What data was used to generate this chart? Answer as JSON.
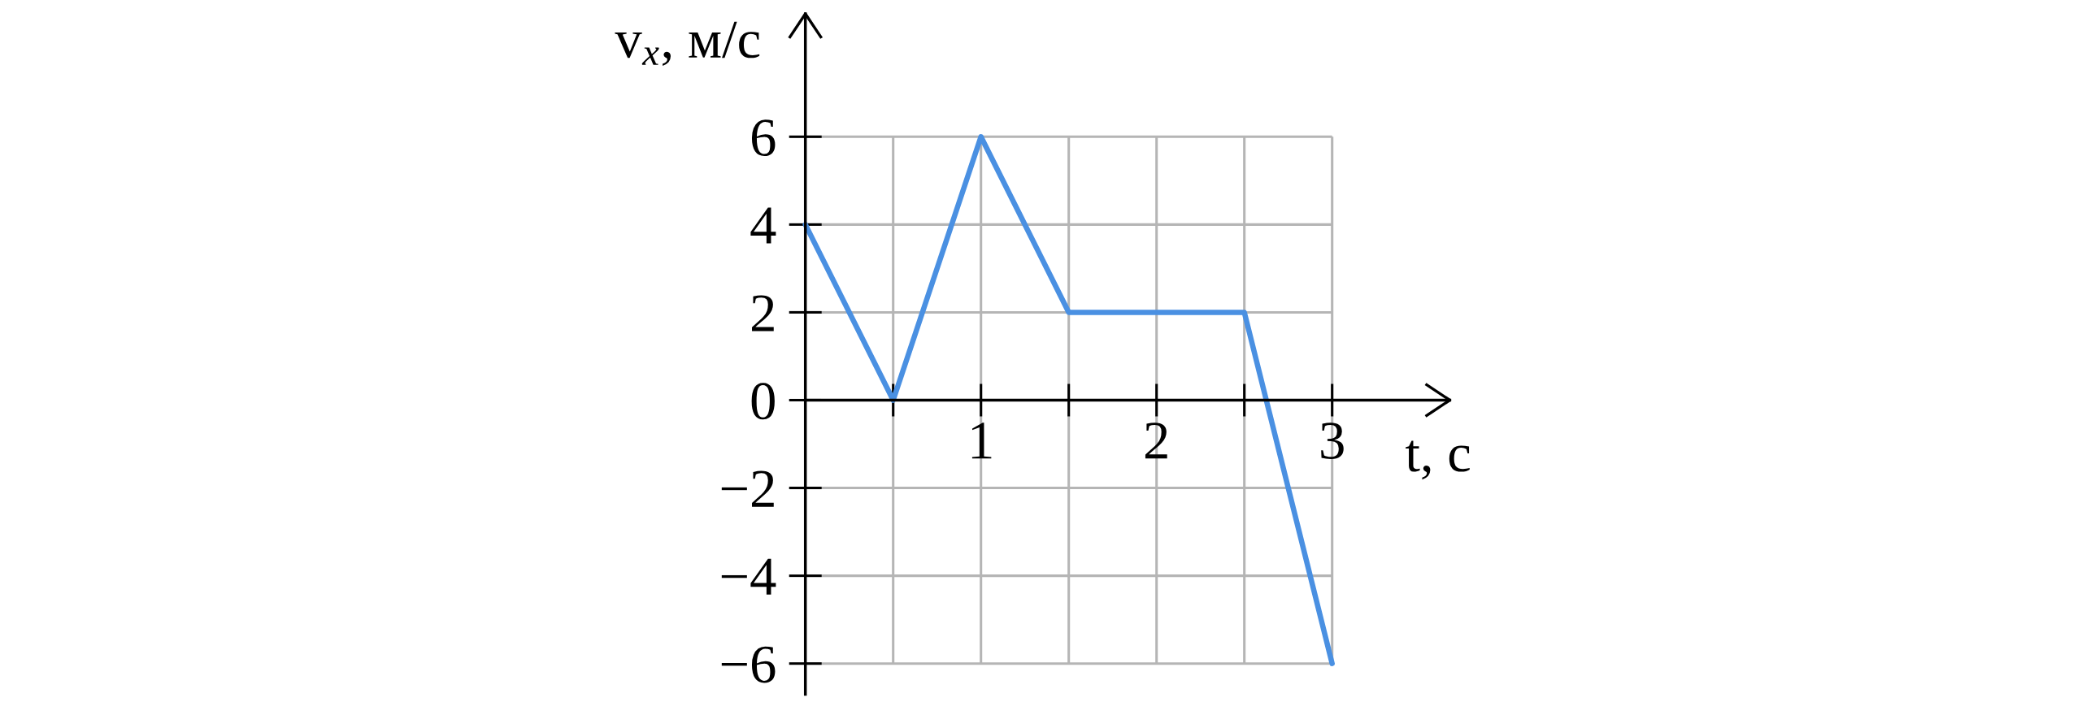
{
  "chart_data": {
    "type": "line",
    "xlabel": "t, с",
    "ylabel": "v$_{x}$, м/с",
    "x": [
      0,
      0.5,
      1,
      1.5,
      2.5,
      3
    ],
    "series": [
      {
        "color": "#4a90e2",
        "values": [
          4,
          0,
          6,
          2,
          2,
          -6
        ]
      }
    ],
    "xlim": [
      0,
      3.67
    ],
    "ylim": [
      -6.7,
      8.8
    ],
    "xticks": [
      {
        "value": 0.5,
        "label": null
      },
      1,
      {
        "value": 1.5,
        "label": null
      },
      2,
      {
        "value": 2.5,
        "label": null
      },
      3
    ],
    "yticks": [
      {
        "value": -6,
        "label": "−6"
      },
      {
        "value": -4,
        "label": "−4"
      },
      {
        "value": -2,
        "label": "−2"
      },
      0,
      2,
      4,
      6
    ],
    "grid": true,
    "line_style": "solid"
  }
}
